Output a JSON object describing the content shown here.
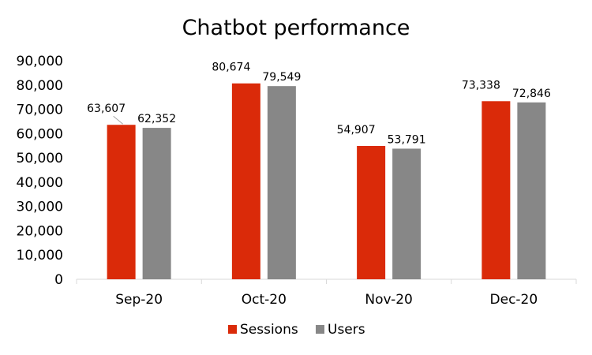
{
  "chart_data": {
    "type": "bar",
    "title": "Chatbot performance",
    "xlabel": "",
    "ylabel": "",
    "categories": [
      "Sep-20",
      "Oct-20",
      "Nov-20",
      "Dec-20"
    ],
    "series": [
      {
        "name": "Sessions",
        "color": "#DA2A09",
        "values": [
          63607,
          80674,
          54907,
          73338
        ],
        "labels": [
          "63,607",
          "80,674",
          "54,907",
          "73,338"
        ]
      },
      {
        "name": "Users",
        "color": "#878787",
        "values": [
          62352,
          79549,
          53791,
          72846
        ],
        "labels": [
          "62,352",
          "79,549",
          "53,791",
          "72,846"
        ]
      }
    ],
    "ylim": [
      0,
      90000
    ],
    "yticks": [
      0,
      10000,
      20000,
      30000,
      40000,
      50000,
      60000,
      70000,
      80000,
      90000
    ],
    "ytick_labels": [
      "0",
      "10,000",
      "20,000",
      "30,000",
      "40,000",
      "50,000",
      "60,000",
      "70,000",
      "80,000",
      "90,000"
    ],
    "grid": false,
    "legend_position": "bottom-center"
  }
}
